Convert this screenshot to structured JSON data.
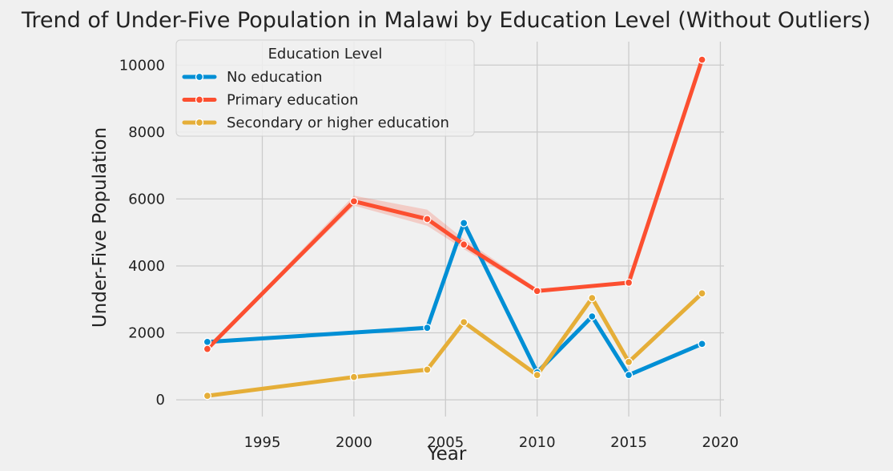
{
  "chart_data": {
    "type": "line",
    "title": "Trend of Under-Five Population in Malawi by Education Level (Without Outliers)",
    "xlabel": "Year",
    "ylabel": "Under-Five Population",
    "xlim": [
      1990.3,
      2020.2
    ],
    "ylim": [
      -500,
      10700
    ],
    "xticks": [
      1995,
      2000,
      2005,
      2010,
      2015,
      2020
    ],
    "yticks": [
      0,
      2000,
      4000,
      6000,
      8000,
      10000
    ],
    "grid": true,
    "legend": {
      "title": "Education Level",
      "placement": "top-left"
    },
    "series": [
      {
        "name": "No education",
        "color": "#008fd5",
        "x": [
          1992,
          2004,
          2006,
          2010,
          2013,
          2015,
          2019
        ],
        "y": [
          1730,
          2150,
          5280,
          820,
          2490,
          740,
          1670
        ],
        "band_lower": [
          1720,
          2100,
          5240,
          780,
          2460,
          720,
          1650
        ],
        "band_upper": [
          1750,
          2220,
          5320,
          860,
          2520,
          760,
          1690
        ]
      },
      {
        "name": "Primary education",
        "color": "#fc4f30",
        "x": [
          1992,
          2000,
          2004,
          2006,
          2010,
          2015,
          2019
        ],
        "y": [
          1520,
          5930,
          5400,
          4640,
          3250,
          3500,
          10160
        ],
        "band_lower": [
          1500,
          5800,
          5200,
          4500,
          3200,
          3480,
          10140
        ],
        "band_upper": [
          1540,
          6100,
          5680,
          4800,
          3320,
          3520,
          10180
        ]
      },
      {
        "name": "Secondary or higher education",
        "color": "#e5ae38",
        "x": [
          1992,
          2000,
          2004,
          2006,
          2010,
          2013,
          2015,
          2019
        ],
        "y": [
          120,
          680,
          900,
          2320,
          740,
          3040,
          1130,
          3180
        ],
        "band_lower": [
          110,
          670,
          880,
          2300,
          720,
          3020,
          1110,
          3160
        ],
        "band_upper": [
          130,
          690,
          920,
          2340,
          760,
          3060,
          1150,
          3200
        ]
      }
    ]
  }
}
